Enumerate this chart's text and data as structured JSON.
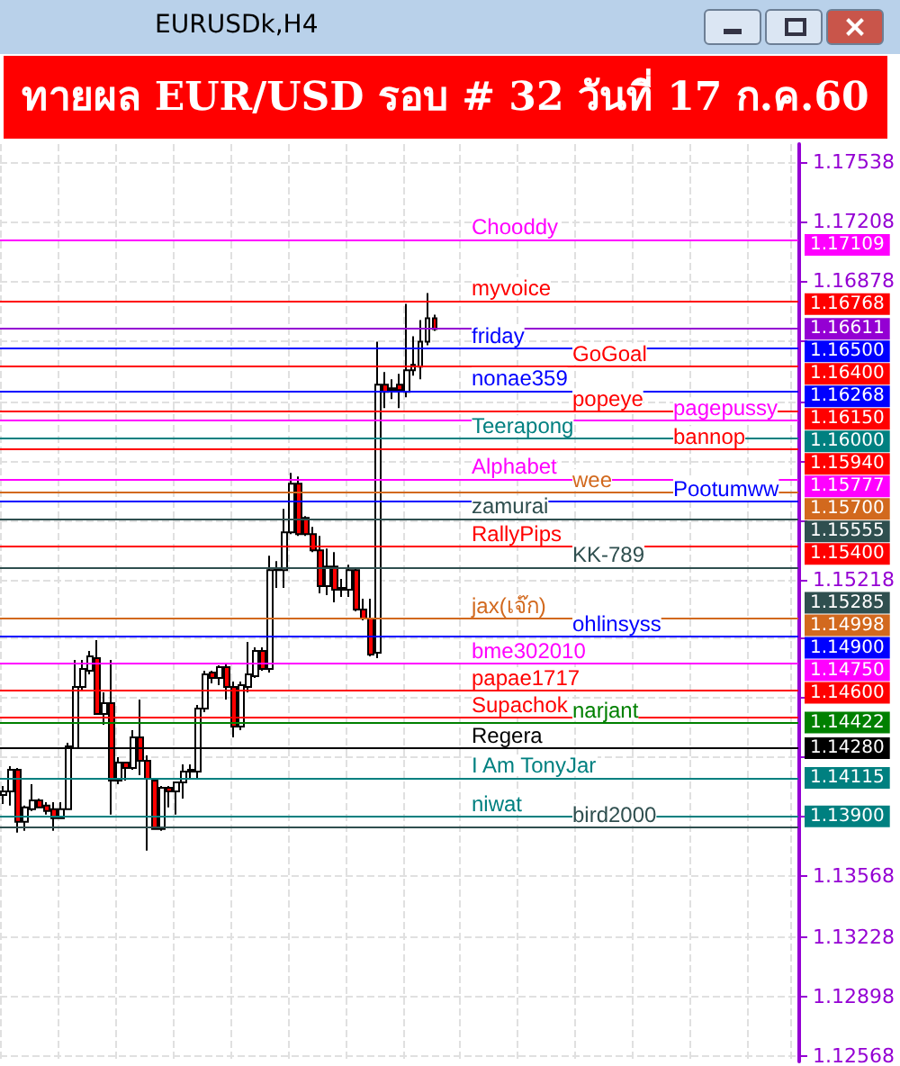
{
  "chart_data": {
    "type": "candlestick",
    "title": "ทายผล EUR/USD รอบ # 32 วันที่ 17 ก.ค.60",
    "subtitle": "EURUSDk,H4",
    "categories": [
      null,
      null,
      null,
      null,
      null,
      null,
      null,
      null,
      null,
      null,
      null,
      null,
      null,
      null,
      null,
      null,
      null,
      null,
      null,
      null,
      null,
      null,
      null,
      null,
      null,
      null,
      null,
      null,
      null,
      null,
      null,
      null,
      null,
      null,
      null,
      null,
      null,
      null,
      null,
      null,
      null,
      null,
      null,
      null,
      null,
      null,
      null,
      null,
      null,
      null,
      null,
      null,
      null,
      null,
      null,
      null,
      null,
      null,
      null,
      null,
      null,
      null,
      null,
      null,
      null,
      null,
      null,
      null,
      null,
      null,
      null,
      null,
      null,
      null,
      null,
      null,
      null,
      null,
      null,
      null,
      null,
      null,
      null,
      null,
      null,
      null,
      null,
      null,
      null,
      null,
      null,
      null,
      null,
      null,
      null,
      null,
      null,
      null,
      null,
      null,
      null,
      null,
      null,
      null,
      null,
      null,
      null,
      null,
      null,
      null,
      null
    ],
    "ohlc": [
      [
        1.1402,
        1.1407,
        1.1397,
        1.1404
      ],
      [
        1.1404,
        1.1418,
        1.1396,
        1.1416
      ],
      [
        1.1416,
        1.1417,
        1.1381,
        1.1387
      ],
      [
        1.1387,
        1.1396,
        1.1382,
        1.1395
      ],
      [
        1.1394,
        1.1408,
        1.1393,
        1.1399
      ],
      [
        1.1399,
        1.14,
        1.1395,
        1.1395
      ],
      [
        1.1396,
        1.1398,
        1.1391,
        1.1393
      ],
      [
        1.1394,
        1.1398,
        1.1382,
        1.1389
      ],
      [
        1.1389,
        1.1398,
        1.1389,
        1.1394
      ],
      [
        1.1394,
        1.1431,
        1.1394,
        1.1429
      ],
      [
        1.1428,
        1.1477,
        1.1428,
        1.1462
      ],
      [
        1.1462,
        1.1477,
        1.146,
        1.1472
      ],
      [
        1.1471,
        1.1482,
        1.1469,
        1.1479
      ],
      [
        1.1478,
        1.1488,
        1.1447,
        1.1447
      ],
      [
        1.1447,
        1.1459,
        1.1441,
        1.1453
      ],
      [
        1.1453,
        1.1477,
        1.1391,
        1.141
      ],
      [
        1.141,
        1.1423,
        1.1408,
        1.142
      ],
      [
        1.142,
        1.142,
        1.141,
        1.1417
      ],
      [
        1.1417,
        1.1438,
        1.1416,
        1.1434
      ],
      [
        1.1434,
        1.1455,
        1.1413,
        1.1421
      ],
      [
        1.1421,
        1.1424,
        1.1371,
        1.1411
      ],
      [
        1.141,
        1.1411,
        1.1383,
        1.1383
      ],
      [
        1.1383,
        1.1407,
        1.1382,
        1.1406
      ],
      [
        1.1406,
        1.1407,
        1.1395,
        1.1404
      ],
      [
        1.1404,
        1.1409,
        1.1391,
        1.1409
      ],
      [
        1.1409,
        1.1419,
        1.14,
        1.1415
      ],
      [
        1.1416,
        1.1419,
        1.1411,
        1.1415
      ],
      [
        1.1415,
        1.1452,
        1.1411,
        1.145
      ],
      [
        1.145,
        1.1471,
        1.1448,
        1.1469
      ],
      [
        1.147,
        1.1471,
        1.1464,
        1.1467
      ],
      [
        1.1467,
        1.1474,
        1.1463,
        1.1473
      ],
      [
        1.1473,
        1.1475,
        1.1455,
        1.1462
      ],
      [
        1.1462,
        1.1465,
        1.1434,
        1.144
      ],
      [
        1.144,
        1.1465,
        1.1438,
        1.1463
      ],
      [
        1.1462,
        1.1487,
        1.1459,
        1.1469
      ],
      [
        1.1468,
        1.1484,
        1.1467,
        1.1482
      ],
      [
        1.1482,
        1.1484,
        1.1471,
        1.1472
      ],
      [
        1.1472,
        1.1535,
        1.147,
        1.1527
      ],
      [
        1.1528,
        1.1532,
        1.1517,
        1.1527
      ],
      [
        1.1527,
        1.1561,
        1.1517,
        1.1548
      ],
      [
        1.1548,
        1.1581,
        1.1547,
        1.1575
      ],
      [
        1.1575,
        1.1579,
        1.1546,
        1.1547
      ],
      [
        1.1556,
        1.1557,
        1.1546,
        1.1547
      ],
      [
        1.1547,
        1.1551,
        1.1537,
        1.1538
      ],
      [
        1.1538,
        1.1546,
        1.1514,
        1.1518
      ],
      [
        1.1518,
        1.1539,
        1.1513,
        1.1529
      ],
      [
        1.1529,
        1.1537,
        1.1509,
        1.1516
      ],
      [
        1.1517,
        1.1522,
        1.1512,
        1.1516
      ],
      [
        1.1516,
        1.153,
        1.1512,
        1.1527
      ],
      [
        1.1527,
        1.1528,
        1.1504,
        1.1505
      ],
      [
        1.1505,
        1.1511,
        1.1499,
        1.15
      ],
      [
        1.15,
        1.1511,
        1.1479,
        1.148
      ],
      [
        1.1481,
        1.1654,
        1.1478,
        1.163
      ],
      [
        1.163,
        1.1637,
        1.1617,
        1.1626
      ],
      [
        1.1627,
        1.1633,
        1.1622,
        1.1628
      ],
      [
        1.163,
        1.1636,
        1.1617,
        1.1627
      ],
      [
        1.1626,
        1.1675,
        1.1623,
        1.1638
      ],
      [
        1.1638,
        1.1657,
        1.1635,
        1.1641
      ],
      [
        1.164,
        1.1666,
        1.1633,
        1.1654
      ],
      [
        1.1654,
        1.1681,
        1.1652,
        1.1667
      ],
      [
        1.1667,
        1.1669,
        1.166,
        1.1661
      ],
      null,
      null,
      null,
      null,
      null,
      null,
      null,
      null,
      null,
      null,
      null,
      null,
      null,
      null,
      null,
      null,
      null,
      null,
      null,
      null,
      null,
      null,
      null,
      null,
      null,
      null,
      null,
      null,
      null,
      null,
      null,
      null,
      null,
      null,
      null,
      null,
      null,
      null,
      null,
      null,
      null,
      null,
      null,
      null,
      null,
      null,
      null,
      null,
      null,
      null
    ],
    "colors": [
      "#ffffff",
      "#ffffff",
      "#ff0000",
      "#ffffff",
      "#ffffff",
      "#ff0000",
      "#ff0000",
      "#ff0000",
      "#ffffff",
      "#ffffff",
      "#ffffff",
      "#ffffff",
      "#ffffff",
      "#ff0000",
      "#ffffff",
      "#ff0000",
      "#ffffff",
      "#ff0000",
      "#ffffff",
      "#ff0000",
      "#ff0000",
      "#ff0000",
      "#ffffff",
      "#ff0000",
      "#ffffff",
      "#ffffff",
      "#ff0000",
      "#ffffff",
      "#ffffff",
      "#ff0000",
      "#ffffff",
      "#ff0000",
      "#ff0000",
      "#ffffff",
      "#ffffff",
      "#ffffff",
      "#ff0000",
      "#ffffff",
      "#ff0000",
      "#ffffff",
      "#ffffff",
      "#ff0000",
      "#ff0000",
      "#ff0000",
      "#ff0000",
      "#ffffff",
      "#ff0000",
      "#ff0000",
      "#ffffff",
      "#ff0000",
      "#ff0000",
      "#ff0000",
      "#ffffff",
      "#ff0000",
      "#ffffff",
      "#ff0000",
      "#ffffff",
      "#ffffff",
      "#ffffff",
      "#ffffff",
      "#ff0000",
      null,
      null,
      null,
      null,
      null,
      null,
      null,
      null,
      null,
      null,
      null,
      null,
      null,
      null,
      null,
      null,
      null,
      null,
      null,
      null,
      null,
      null,
      null,
      null,
      null,
      null,
      null,
      null,
      null,
      null,
      null,
      null,
      null,
      null,
      null,
      null,
      null,
      null,
      null,
      null,
      null,
      null,
      null,
      null,
      null,
      null,
      null,
      null,
      null,
      null
    ],
    "ylim": [
      1.12538,
      1.17638
    ],
    "yticks": [
      1.12568,
      1.12898,
      1.13228,
      1.13568,
      {
        "value": 1.13898,
        "label": null
      },
      {
        "value": 1.14228,
        "label": null
      },
      {
        "value": 1.14558,
        "label": null
      },
      {
        "value": 1.14888,
        "label": null
      },
      1.15218,
      {
        "value": 1.15548,
        "label": null
      },
      {
        "value": 1.15878,
        "label": null
      },
      {
        "value": 1.16208,
        "label": null
      },
      {
        "value": 1.16548,
        "label": null
      },
      1.16878,
      1.17208,
      1.17538
    ],
    "tick_labels": "y",
    "grid": true,
    "annotations": [
      "1.17109",
      "1.16768",
      "1.16611",
      "1.16500",
      "1.16400",
      "1.16268",
      "1.16150",
      "1.16000",
      "1.15940",
      "1.15777",
      "1.15700",
      "1.15555",
      "1.15400",
      "1.15285",
      "1.14998",
      "1.14900",
      "1.14750",
      "1.14600",
      "1.14422",
      "1.14280",
      "1.14115",
      "1.13900"
    ],
    "ref_lines": [
      {
        "axis": "y",
        "value": 1.17109,
        "label": "Chooddy",
        "color": "#ff00ff"
      },
      {
        "axis": "y",
        "value": 1.16768,
        "label": "myvoice",
        "color": "#ff0000"
      },
      {
        "axis": "y",
        "value": 1.16611,
        "label": null,
        "color": "#9400d3"
      },
      {
        "axis": "y",
        "value": 1.165,
        "label": "friday",
        "color": "#0000ff"
      },
      {
        "axis": "y",
        "value": 1.164,
        "label": "GoGoal",
        "color": "#ff0000"
      },
      {
        "axis": "y",
        "value": 1.16268,
        "label": "nonae359",
        "color": "#0000ff"
      },
      {
        "axis": "y",
        "value": 1.1615,
        "label": "popeye",
        "color": "#ff0000"
      },
      {
        "axis": "y",
        "value": 1.161,
        "label": "pagepussy",
        "color": "#ff00ff"
      },
      {
        "axis": "y",
        "value": 1.16,
        "label": "Teerapong",
        "color": "#008080"
      },
      {
        "axis": "y",
        "value": 1.1594,
        "label": "bannop",
        "color": "#ff0000"
      },
      {
        "axis": "y",
        "value": 1.15777,
        "label": "Alphabet",
        "color": "#ff00ff"
      },
      {
        "axis": "y",
        "value": 1.157,
        "label": "wee",
        "color": "#d2691e"
      },
      {
        "axis": "y",
        "value": 1.1565,
        "label": "Pootumww",
        "color": "#0000ff"
      },
      {
        "axis": "y",
        "value": 1.15555,
        "label": "zamurai",
        "color": "#2f4f4f"
      },
      {
        "axis": "y",
        "value": 1.154,
        "label": "RallyPips",
        "color": "#ff0000"
      },
      {
        "axis": "y",
        "value": 1.15285,
        "label": "KK-789",
        "color": "#2f4f4f"
      },
      {
        "axis": "y",
        "value": 1.14998,
        "label": "jax(เจ๊ก)",
        "color": "#d2691e"
      },
      {
        "axis": "y",
        "value": 1.149,
        "label": "ohlinsyss",
        "color": "#0000ff"
      },
      {
        "axis": "y",
        "value": 1.1475,
        "label": "bme302010",
        "color": "#ff00ff"
      },
      {
        "axis": "y",
        "value": 1.146,
        "label": "papae1717",
        "color": "#ff0000"
      },
      {
        "axis": "y",
        "value": 1.1445,
        "label": "Supachok",
        "color": "#ff0000"
      },
      {
        "axis": "y",
        "value": 1.14422,
        "label": "narjant",
        "color": "#008000"
      },
      {
        "axis": "y",
        "value": 1.1428,
        "label": "Regera",
        "color": "#000000"
      },
      {
        "axis": "y",
        "value": 1.14115,
        "label": "I Am TonyJar",
        "color": "#008080"
      },
      {
        "axis": "y",
        "value": 1.139,
        "label": "niwat",
        "color": "#008080"
      },
      {
        "axis": "y",
        "value": 1.1384,
        "label": "bird2000",
        "color": "#2f4f4f"
      }
    ]
  }
}
